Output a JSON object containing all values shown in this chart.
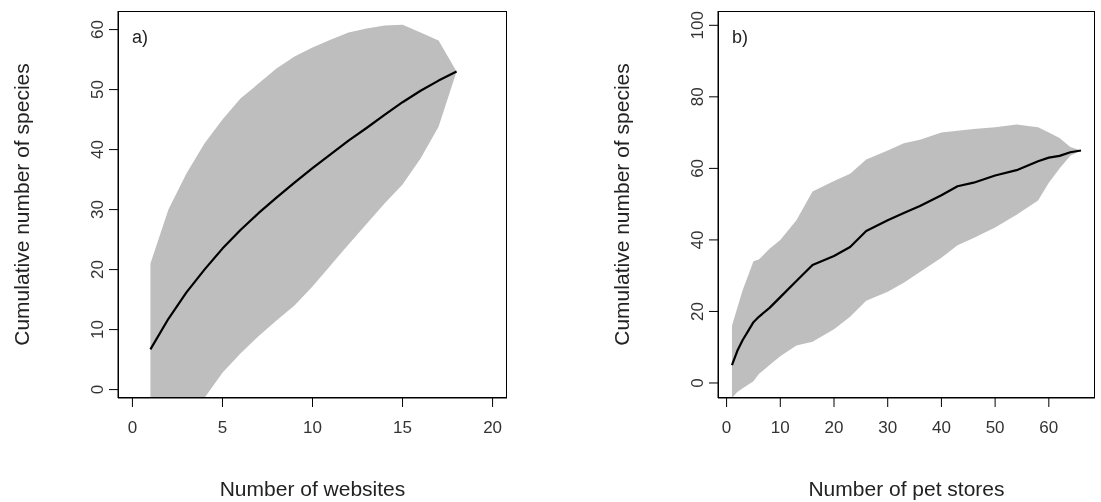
{
  "chart_data": [
    {
      "type": "line",
      "xlabel": "Number of websites",
      "ylabel": "Cumulative number of species",
      "annotations": [
        "a)"
      ],
      "x": [
        1,
        2,
        3,
        4,
        5,
        6,
        7,
        8,
        9,
        10,
        11,
        12,
        13,
        14,
        15,
        16,
        17,
        18
      ],
      "series": [
        {
          "color": "#000000",
          "values": [
            6.7,
            11.8,
            16.2,
            20,
            23.5,
            26.6,
            29.4,
            32,
            34.5,
            36.9,
            39.2,
            41.5,
            43.6,
            45.8,
            47.9,
            49.8,
            51.5,
            53
          ],
          "lower": [
            -1.4,
            -1.4,
            -1.4,
            -1.4,
            2.8,
            6,
            8.9,
            11.5,
            14,
            17.2,
            20.7,
            24.2,
            27.6,
            31,
            34.2,
            38.5,
            43.8,
            53
          ],
          "upper": [
            21,
            30,
            36,
            41,
            45,
            48.5,
            51,
            53.5,
            55.5,
            57,
            58.3,
            59.5,
            60.2,
            60.7,
            60.8,
            59.5,
            58.2,
            53
          ]
        }
      ],
      "xlim": [
        -0.8,
        20.8
      ],
      "ylim": [
        -1.4,
        63.1
      ],
      "xticks": [
        0,
        5,
        10,
        15,
        20
      ],
      "yticks": [
        0,
        10,
        20,
        30,
        40,
        50,
        60
      ]
    },
    {
      "type": "line",
      "xlabel": "Number of pet stores",
      "ylabel": "Cumulative number of species",
      "annotations": [
        "b)"
      ],
      "x": [
        1,
        2,
        3,
        4,
        5,
        6,
        8,
        10,
        13,
        16,
        20,
        23,
        26,
        30,
        33,
        36,
        40,
        43,
        46,
        50,
        54,
        58,
        60,
        62,
        64,
        66
      ],
      "series": [
        {
          "color": "#000000",
          "values": [
            5,
            9,
            12,
            14.5,
            17,
            18.5,
            21,
            24,
            28.5,
            33,
            35.5,
            38,
            42.5,
            45.5,
            47.5,
            49.5,
            52.5,
            55,
            56,
            58,
            59.5,
            62,
            63,
            63.5,
            64.5,
            65
          ],
          "lower": [
            -4.2,
            -2.5,
            -1.5,
            -0.5,
            0.5,
            2.5,
            5,
            7.5,
            10.5,
            11.5,
            15,
            18.5,
            23,
            25.5,
            28,
            31,
            35,
            38.5,
            40.5,
            43.5,
            47,
            51,
            56,
            60,
            63.5,
            65
          ],
          "upper": [
            16,
            21,
            26,
            30,
            34,
            34.5,
            37.5,
            40,
            45.5,
            53.5,
            56.5,
            58.5,
            62.5,
            65,
            67,
            68,
            70,
            70.5,
            71,
            71.5,
            72.3,
            71.5,
            70,
            68.5,
            66,
            65
          ]
        }
      ],
      "xlim": [
        -1.6,
        68.6
      ],
      "ylim": [
        -4.2,
        104
      ],
      "xticks": [
        0,
        10,
        20,
        30,
        40,
        50,
        60
      ],
      "yticks": [
        0,
        20,
        40,
        60,
        80,
        100
      ]
    }
  ]
}
